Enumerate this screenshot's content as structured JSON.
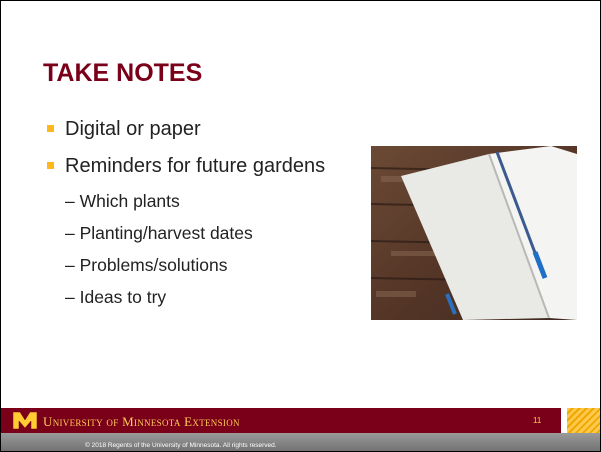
{
  "slide": {
    "title": "TAKE NOTES",
    "bullets": [
      {
        "text": "Digital or paper",
        "subitems": []
      },
      {
        "text": "Reminders for future gardens",
        "subitems": [
          "– Which plants",
          "– Planting/harvest dates",
          "– Problems/solutions",
          "– Ideas to try"
        ]
      }
    ],
    "footer": {
      "organization": "University of Minnesota Extension",
      "page_number": "11",
      "copyright": "© 2018 Regents of the University of Minnesota. All rights reserved."
    }
  }
}
